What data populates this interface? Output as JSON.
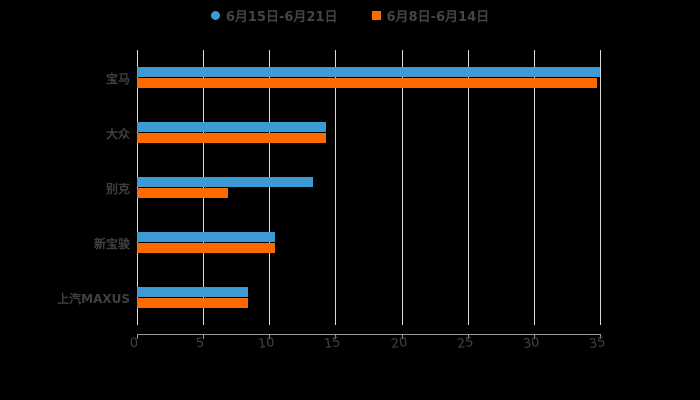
{
  "chart_data": {
    "type": "bar",
    "orientation": "horizontal",
    "categories": [
      "宝马",
      "大众",
      "别克",
      "新宝骏",
      "上汽MAXUS"
    ],
    "series": [
      {
        "name": "6月15日-6月21日",
        "color": "#3c9bd4",
        "values": [
          35.0,
          14.3,
          13.3,
          10.4,
          8.4
        ]
      },
      {
        "name": "6月8日-6月14日",
        "color": "#ff6a00",
        "values": [
          34.8,
          14.3,
          6.9,
          10.4,
          8.4
        ]
      }
    ],
    "title": "",
    "xlabel": "",
    "ylabel": "",
    "xlim": [
      0,
      35
    ],
    "xticks": [
      "0",
      "5",
      "10",
      "15",
      "20",
      "25",
      "30",
      "35"
    ],
    "grid": true,
    "legend_position": "top"
  },
  "legend": [
    {
      "label": "6月15日-6月21日",
      "color": "#3c9bd4"
    },
    {
      "label": "6月8日-6月14日",
      "color": "#ff6a00"
    }
  ]
}
